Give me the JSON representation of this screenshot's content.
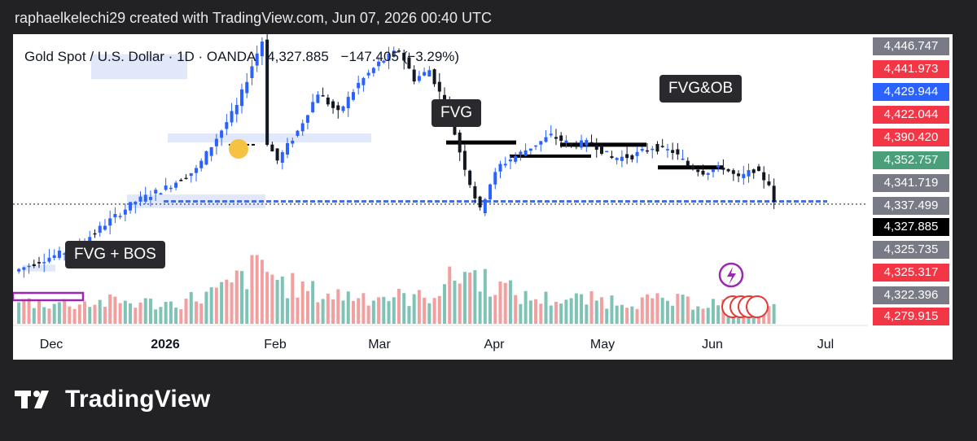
{
  "header": {
    "credit": "raphaelkelechi29 created with TradingView.com, Jun 07, 2026 00:40 UTC"
  },
  "legend": {
    "symbol": "Gold Spot / U.S. Dollar · 1D · OANDA",
    "last": "4,327.885",
    "change": "−147.405 (−3.29%)"
  },
  "annotations": {
    "fvg_bos": "FVG + BOS",
    "fvg": "FVG",
    "fvg_ob": "FVG&OB"
  },
  "price_labels": [
    {
      "text": "4,446.747",
      "color": "#787b86"
    },
    {
      "text": "4,441.973",
      "color": "#f23645"
    },
    {
      "text": "4,429.944",
      "color": "#2962ff"
    },
    {
      "text": "4,422.044",
      "color": "#f23645"
    },
    {
      "text": "4,390.420",
      "color": "#f23645"
    },
    {
      "text": "4,352.757",
      "color": "#4a9e7a"
    },
    {
      "text": "4,341.719",
      "color": "#787b86"
    },
    {
      "text": "4,337.499",
      "color": "#787b86"
    },
    {
      "text": "4,327.885",
      "color": "#000000"
    },
    {
      "text": "4,325.735",
      "color": "#787b86"
    },
    {
      "text": "4,325.317",
      "color": "#f23645"
    },
    {
      "text": "4,322.396",
      "color": "#787b86"
    },
    {
      "text": "4,279.915",
      "color": "#f23645"
    }
  ],
  "chart_data": {
    "type": "candlestick",
    "x_ticks": [
      "Dec",
      "2026",
      "Feb",
      "Mar",
      "Apr",
      "May",
      "Jun",
      "Jul"
    ],
    "last_price": 4327.885,
    "colors": {
      "up": "#2962ff",
      "down": "#131722",
      "vol_up": "#7fc3b6",
      "vol_down": "#f2a09f"
    },
    "price_series": [
      {
        "x": 0,
        "price": 4030
      },
      {
        "x": 6,
        "price": 4085
      },
      {
        "x": 12,
        "price": 4130
      },
      {
        "x": 18,
        "price": 4240
      },
      {
        "x": 24,
        "price": 4340
      },
      {
        "x": 30,
        "price": 4400
      },
      {
        "x": 36,
        "price": 4480
      },
      {
        "x": 40,
        "price": 4620
      },
      {
        "x": 44,
        "price": 4760
      },
      {
        "x": 47,
        "price": 4940
      },
      {
        "x": 49,
        "price": 5050
      },
      {
        "x": 50,
        "price": 4600
      },
      {
        "x": 52,
        "price": 4520
      },
      {
        "x": 56,
        "price": 4650
      },
      {
        "x": 60,
        "price": 4820
      },
      {
        "x": 64,
        "price": 4730
      },
      {
        "x": 68,
        "price": 4860
      },
      {
        "x": 72,
        "price": 4950
      },
      {
        "x": 76,
        "price": 5010
      },
      {
        "x": 79,
        "price": 4880
      },
      {
        "x": 82,
        "price": 4920
      },
      {
        "x": 84,
        "price": 4820
      },
      {
        "x": 86,
        "price": 4720
      },
      {
        "x": 88,
        "price": 4560
      },
      {
        "x": 90,
        "price": 4420
      },
      {
        "x": 92,
        "price": 4300
      },
      {
        "x": 94,
        "price": 4420
      },
      {
        "x": 96,
        "price": 4500
      },
      {
        "x": 99,
        "price": 4540
      },
      {
        "x": 102,
        "price": 4580
      },
      {
        "x": 106,
        "price": 4630
      },
      {
        "x": 110,
        "price": 4590
      },
      {
        "x": 114,
        "price": 4600
      },
      {
        "x": 118,
        "price": 4530
      },
      {
        "x": 122,
        "price": 4540
      },
      {
        "x": 126,
        "price": 4580
      },
      {
        "x": 130,
        "price": 4560
      },
      {
        "x": 133,
        "price": 4500
      },
      {
        "x": 136,
        "price": 4470
      },
      {
        "x": 140,
        "price": 4490
      },
      {
        "x": 143,
        "price": 4440
      },
      {
        "x": 146,
        "price": 4480
      },
      {
        "x": 149,
        "price": 4420
      },
      {
        "x": 150,
        "price": 4327.885
      }
    ],
    "volume": [
      {
        "x": 0,
        "v": 30
      },
      {
        "x": 10,
        "v": 28
      },
      {
        "x": 20,
        "v": 30
      },
      {
        "x": 30,
        "v": 27
      },
      {
        "x": 40,
        "v": 45
      },
      {
        "x": 48,
        "v": 80
      },
      {
        "x": 52,
        "v": 55
      },
      {
        "x": 60,
        "v": 40
      },
      {
        "x": 70,
        "v": 38
      },
      {
        "x": 80,
        "v": 35
      },
      {
        "x": 88,
        "v": 72
      },
      {
        "x": 92,
        "v": 60
      },
      {
        "x": 100,
        "v": 35
      },
      {
        "x": 110,
        "v": 33
      },
      {
        "x": 120,
        "v": 32
      },
      {
        "x": 130,
        "v": 30
      },
      {
        "x": 140,
        "v": 28
      },
      {
        "x": 150,
        "v": 25
      }
    ]
  }
}
